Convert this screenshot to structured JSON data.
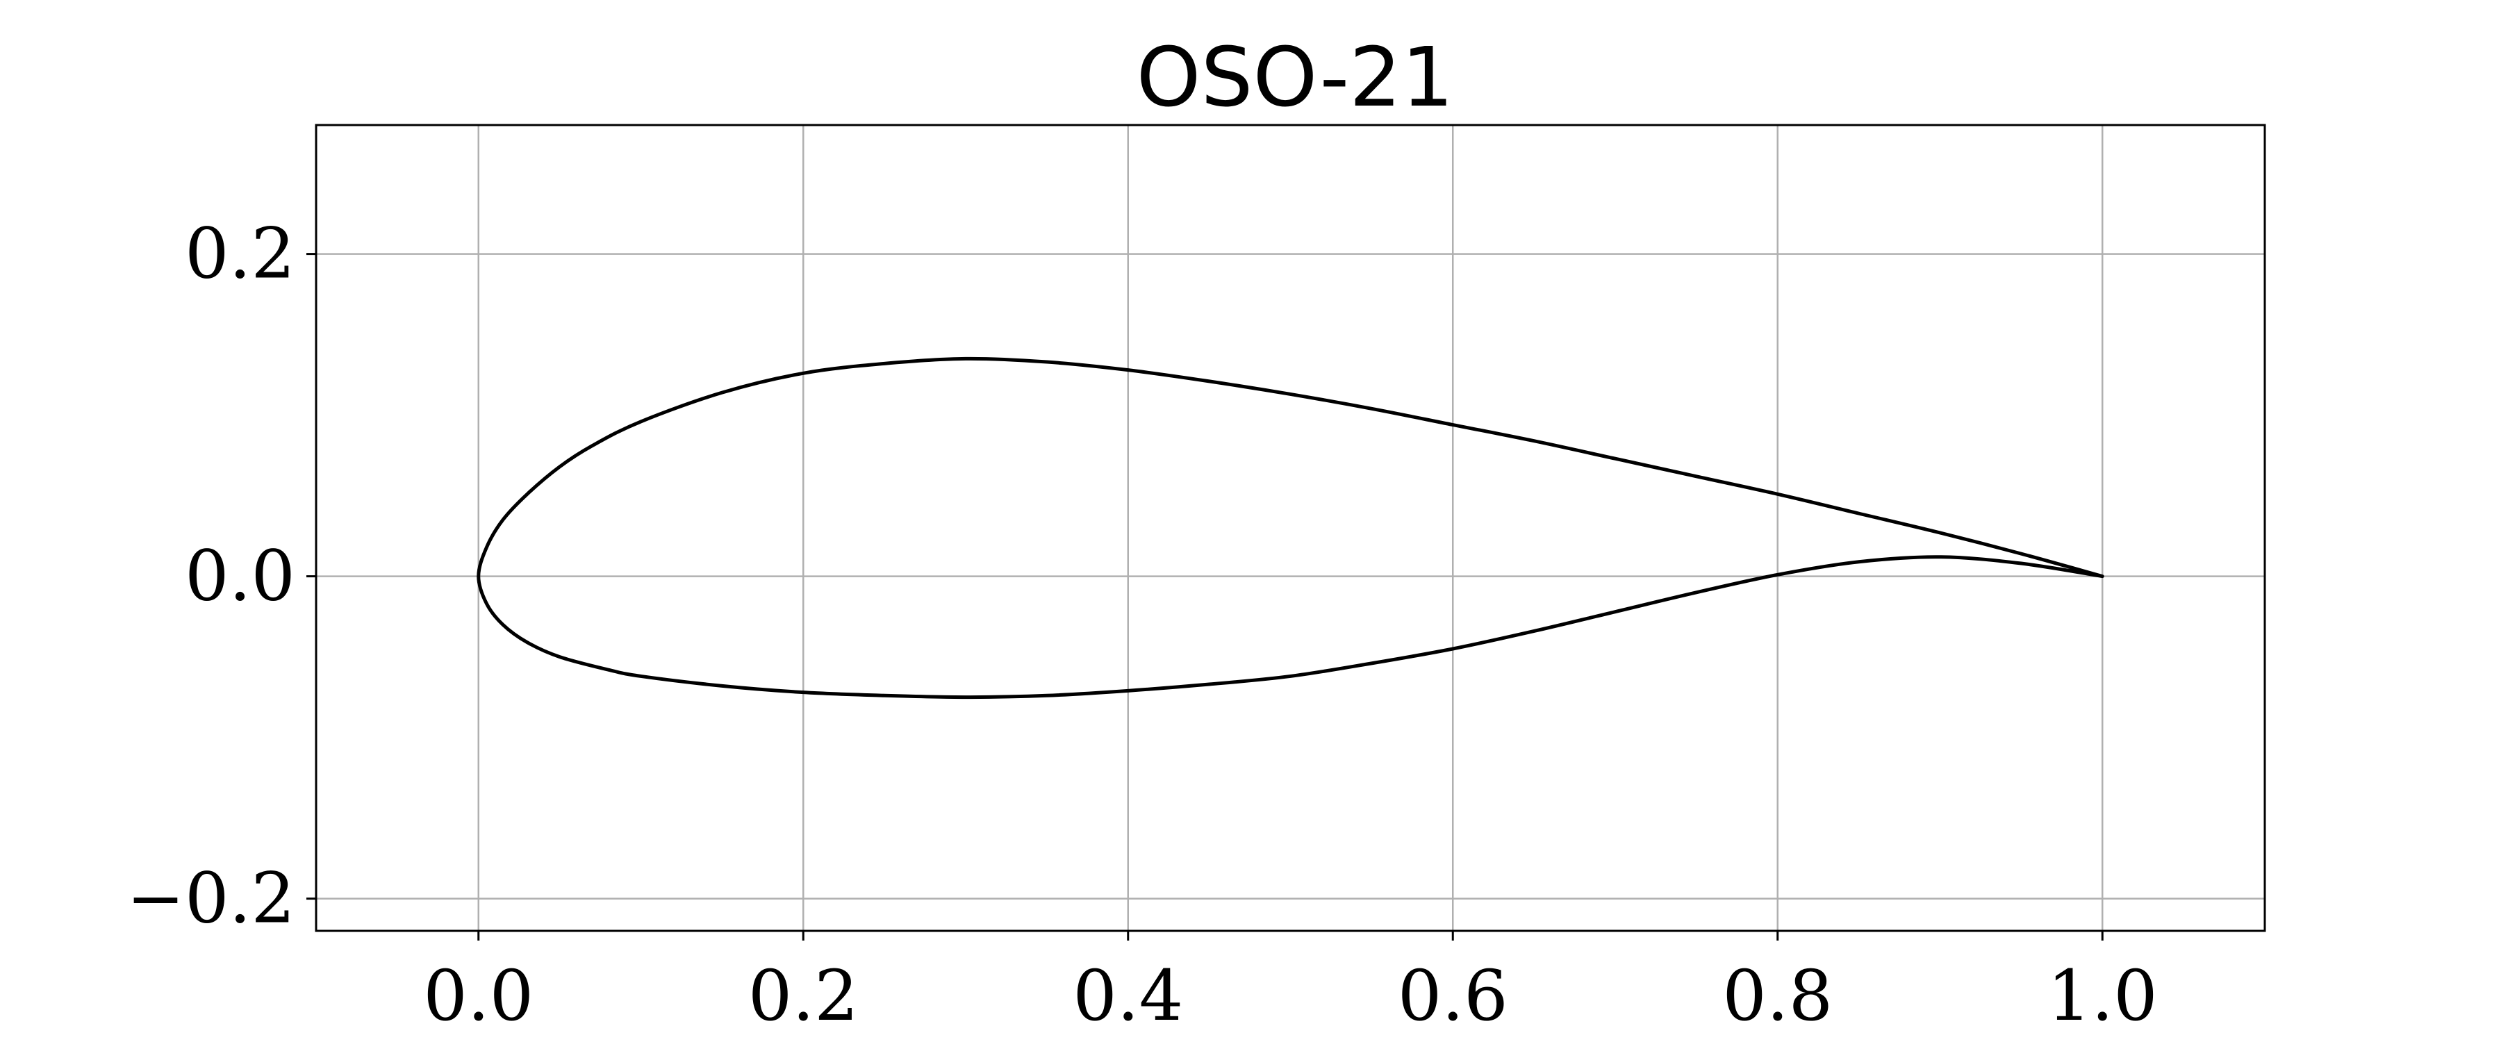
{
  "chart_data": {
    "type": "line",
    "title": "OSO-21",
    "xlabel": "",
    "ylabel": "",
    "xlim": [
      -0.1,
      1.1
    ],
    "ylim": [
      -0.22,
      0.28
    ],
    "x_ticks": [
      0.0,
      0.2,
      0.4,
      0.6,
      0.8,
      1.0
    ],
    "x_tick_labels": [
      "0.0",
      "0.2",
      "0.4",
      "0.6",
      "0.8",
      "1.0"
    ],
    "y_ticks": [
      0.2,
      0.0,
      -0.2
    ],
    "y_tick_labels": [
      "0.2",
      "0.0",
      "−0.2"
    ],
    "grid": true,
    "legend": "none",
    "line_color": "#000000",
    "series": [
      {
        "x": [
          1.0,
          0.95,
          0.9,
          0.85,
          0.8,
          0.75,
          0.7,
          0.65,
          0.6,
          0.55,
          0.5,
          0.45,
          0.4,
          0.35,
          0.3,
          0.25,
          0.2,
          0.15,
          0.1,
          0.07,
          0.05,
          0.03,
          0.015,
          0.005,
          0.0,
          0.005,
          0.015,
          0.03,
          0.05,
          0.08,
          0.1,
          0.15,
          0.2,
          0.25,
          0.3,
          0.35,
          0.4,
          0.45,
          0.5,
          0.55,
          0.6,
          0.65,
          0.7,
          0.75,
          0.8,
          0.85,
          0.9,
          0.95,
          1.0
        ],
        "y": [
          0.0,
          0.014,
          0.027,
          0.039,
          0.051,
          0.062,
          0.073,
          0.084,
          0.094,
          0.104,
          0.113,
          0.121,
          0.128,
          0.133,
          0.135,
          0.132,
          0.126,
          0.114,
          0.096,
          0.081,
          0.068,
          0.051,
          0.035,
          0.018,
          0.0,
          -0.017,
          -0.03,
          -0.041,
          -0.05,
          -0.058,
          -0.062,
          -0.068,
          -0.072,
          -0.074,
          -0.075,
          -0.074,
          -0.071,
          -0.067,
          -0.062,
          -0.054,
          -0.045,
          -0.034,
          -0.022,
          -0.01,
          0.001,
          0.009,
          0.012,
          0.008,
          0.0
        ]
      }
    ]
  }
}
